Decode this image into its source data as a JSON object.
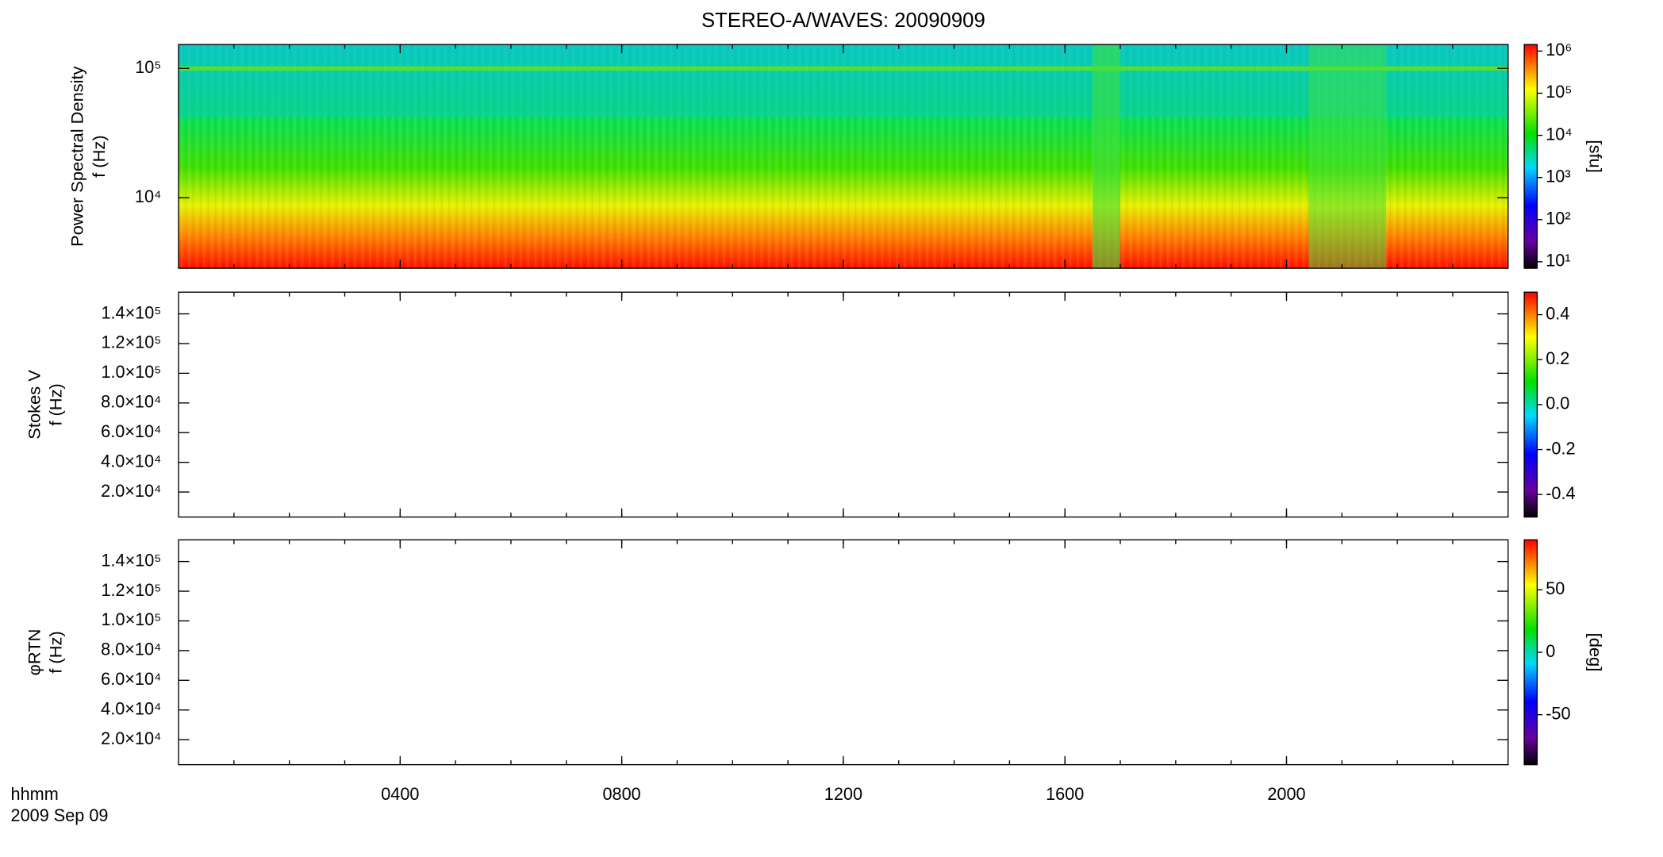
{
  "title": "STEREO-A/WAVES: 20090909",
  "xlim": [
    0,
    24
  ],
  "xticks": [
    {
      "value": 4,
      "label": "0400"
    },
    {
      "value": 8,
      "label": "0800"
    },
    {
      "value": 12,
      "label": "1200"
    },
    {
      "value": 16,
      "label": "1600"
    },
    {
      "value": 20,
      "label": "2000"
    }
  ],
  "xlabel": [
    "hhmm",
    "2009 Sep 09"
  ],
  "chart_data": [
    {
      "type": "spectrogram",
      "ylabel": [
        "Power Spectral Density",
        "f (Hz)"
      ],
      "log": true,
      "ylim": [
        2845,
        153000
      ],
      "yticks": [
        {
          "value": 10000,
          "label": "10⁴"
        },
        {
          "value": 100000,
          "label": "10⁵"
        }
      ],
      "colorbar": {
        "log": true,
        "lim": [
          7,
          1430000
        ],
        "label": "[sfu]",
        "ticks": [
          {
            "value": 10,
            "label": "10¹"
          },
          {
            "value": 100,
            "label": "10²"
          },
          {
            "value": 1000,
            "label": "10³"
          },
          {
            "value": 10000,
            "label": "10⁴"
          },
          {
            "value": 100000,
            "label": "10⁵"
          },
          {
            "value": 1000000,
            "label": "10⁶"
          }
        ]
      }
    },
    {
      "type": "spectrogram",
      "ylabel": [
        "Stokes V",
        "f (Hz)"
      ],
      "ylim": [
        3170,
        154600
      ],
      "yticks": [
        {
          "value": 20000,
          "label": "2.0×10⁴"
        },
        {
          "value": 40000,
          "label": "4.0×10⁴"
        },
        {
          "value": 60000,
          "label": "6.0×10⁴"
        },
        {
          "value": 80000,
          "label": "8.0×10⁴"
        },
        {
          "value": 100000,
          "label": "1.0×10⁵"
        },
        {
          "value": 120000,
          "label": "1.2×10⁵"
        },
        {
          "value": 140000,
          "label": "1.4×10⁵"
        }
      ],
      "colorbar": {
        "lim": [
          -0.5,
          0.5
        ],
        "ticks": [
          {
            "value": -0.4,
            "label": "-0.4"
          },
          {
            "value": -0.2,
            "label": "-0.2"
          },
          {
            "value": 0,
            "label": "0.0"
          },
          {
            "value": 0.2,
            "label": "0.2"
          },
          {
            "value": 0.4,
            "label": "0.4"
          }
        ]
      }
    },
    {
      "type": "spectrogram",
      "ylabel": [
        "φRTN",
        "f (Hz)"
      ],
      "ylim": [
        3170,
        154600
      ],
      "yticks": [
        {
          "value": 20000,
          "label": "2.0×10⁴"
        },
        {
          "value": 40000,
          "label": "4.0×10⁴"
        },
        {
          "value": 60000,
          "label": "6.0×10⁴"
        },
        {
          "value": 80000,
          "label": "8.0×10⁴"
        },
        {
          "value": 100000,
          "label": "1.0×10⁵"
        },
        {
          "value": 120000,
          "label": "1.2×10⁵"
        },
        {
          "value": 140000,
          "label": "1.4×10⁵"
        }
      ],
      "colorbar": {
        "lim": [
          -90,
          90
        ],
        "label": "[deg]",
        "ticks": [
          -50,
          0,
          50
        ]
      }
    }
  ]
}
